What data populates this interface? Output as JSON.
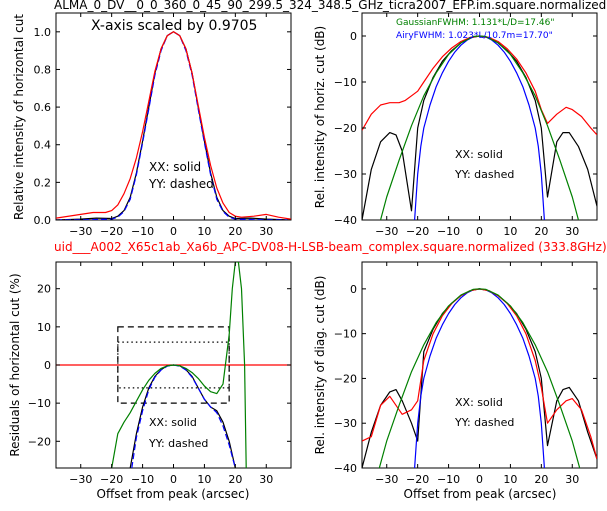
{
  "figure": {
    "title_top": "ALMA_0_DV__0_0_360_0_45_90_299.5_324_348.5_GHz_ticra2007_EFP.im.square.normalized",
    "title_middle": "uid___A002_X65c1ab_Xa6b_APC-DV08-H-LSB-beam_complex.square.normalized (333.8GHz)"
  },
  "colors": {
    "black": "#000000",
    "blue": "#0000ff",
    "red": "#ff0000",
    "green": "#008000"
  },
  "chart_data": [
    {
      "id": "tl",
      "type": "line",
      "ylabel": "Relative intensity of horizontal cut",
      "xlabel": "",
      "xlim": [
        -38,
        38
      ],
      "ylim": [
        0,
        1.1
      ],
      "xticks": [
        "-30",
        "-20",
        "-10",
        "0",
        "10",
        "20",
        "30"
      ],
      "yticks": [
        "0.0",
        "0.2",
        "0.4",
        "0.6",
        "0.8",
        "1.0"
      ],
      "annotation_scale": "X-axis scaled by 0.9705",
      "legend": [
        "XX: solid",
        "YY: dashed"
      ],
      "series": [
        {
          "color": "black",
          "dashed": false,
          "x": [
            -38,
            -30,
            -25,
            -20,
            -18,
            -16,
            -14,
            -12,
            -10,
            -8,
            -6,
            -4,
            -2,
            0,
            2,
            4,
            6,
            8,
            10,
            12,
            14,
            16,
            18,
            20,
            25,
            30,
            38
          ],
          "y": [
            0.0,
            0.005,
            0.01,
            0.008,
            0.02,
            0.05,
            0.12,
            0.25,
            0.42,
            0.6,
            0.78,
            0.91,
            0.98,
            1.0,
            0.98,
            0.91,
            0.78,
            0.6,
            0.42,
            0.25,
            0.12,
            0.05,
            0.02,
            0.008,
            0.01,
            0.005,
            0.0
          ]
        },
        {
          "color": "blue",
          "dashed": true,
          "x": [
            -38,
            -30,
            -20,
            -18,
            -16,
            -14,
            -12,
            -10,
            -8,
            -6,
            -4,
            -2,
            0,
            2,
            4,
            6,
            8,
            10,
            12,
            14,
            16,
            18,
            20,
            30,
            38
          ],
          "y": [
            0.0,
            0.0,
            0.005,
            0.015,
            0.045,
            0.11,
            0.24,
            0.41,
            0.59,
            0.77,
            0.9,
            0.98,
            1.0,
            0.98,
            0.9,
            0.77,
            0.59,
            0.41,
            0.24,
            0.11,
            0.045,
            0.015,
            0.005,
            0.0,
            0.0
          ]
        },
        {
          "color": "red",
          "dashed": false,
          "x": [
            -38,
            -30,
            -26,
            -22,
            -20,
            -18,
            -16,
            -14,
            -12,
            -10,
            -8,
            -6,
            -4,
            -2,
            0,
            2,
            4,
            6,
            8,
            10,
            12,
            14,
            16,
            18,
            20,
            22,
            26,
            30,
            34,
            38
          ],
          "y": [
            0.01,
            0.03,
            0.04,
            0.04,
            0.05,
            0.08,
            0.14,
            0.22,
            0.33,
            0.47,
            0.63,
            0.79,
            0.91,
            0.98,
            1.0,
            0.98,
            0.91,
            0.78,
            0.61,
            0.44,
            0.29,
            0.17,
            0.09,
            0.04,
            0.02,
            0.015,
            0.02,
            0.03,
            0.015,
            0.005
          ]
        }
      ]
    },
    {
      "id": "tr",
      "type": "line",
      "ylabel": "Rel. intensity of horiz. cut (dB)",
      "xlabel": "",
      "xlim": [
        -38,
        38
      ],
      "ylim": [
        -40,
        5
      ],
      "xticks": [
        "-30",
        "-20",
        "-10",
        "0",
        "10",
        "20",
        "30"
      ],
      "yticks": [
        "-40",
        "-30",
        "-20",
        "-10",
        "0"
      ],
      "fwhm_gaussian": "GaussianFWHM: 1.131*L/D=17.46\"",
      "fwhm_airy": "AiryFWHM: 1.023*L/10.7m=17.70\"",
      "legend": [
        "XX: solid",
        "YY: dashed"
      ],
      "series": [
        {
          "color": "black",
          "dashed": false,
          "x": [
            -38,
            -35,
            -32,
            -29,
            -27,
            -25,
            -22,
            -20,
            -18,
            -15,
            -12,
            -9,
            -6,
            -3,
            0,
            3,
            6,
            9,
            12,
            15,
            18,
            20,
            22,
            25,
            27,
            29,
            32,
            35,
            38
          ],
          "y": [
            -40,
            -29,
            -23,
            -21,
            -21.5,
            -25,
            -38,
            -20,
            -14,
            -9,
            -5.5,
            -3.2,
            -1.5,
            -0.4,
            0,
            -0.4,
            -1.5,
            -3.2,
            -5.5,
            -9,
            -14,
            -20,
            -35,
            -23,
            -21,
            -21,
            -24,
            -29,
            -37
          ]
        },
        {
          "color": "blue",
          "dashed": false,
          "x": [
            -21,
            -20,
            -19,
            -18,
            -16,
            -14,
            -12,
            -10,
            -8,
            -6,
            -4,
            -2,
            0,
            2,
            4,
            6,
            8,
            10,
            12,
            14,
            16,
            18,
            19,
            20,
            21
          ],
          "y": [
            -40,
            -30,
            -24,
            -20,
            -15,
            -11,
            -8,
            -5.5,
            -3.5,
            -2,
            -0.9,
            -0.2,
            0,
            -0.2,
            -0.9,
            -2,
            -3.5,
            -5.5,
            -8,
            -11,
            -15,
            -20,
            -24,
            -30,
            -40
          ]
        },
        {
          "color": "red",
          "dashed": false,
          "x": [
            -38,
            -35,
            -32,
            -29,
            -26,
            -24,
            -22,
            -20,
            -18,
            -15,
            -12,
            -9,
            -6,
            -3,
            0,
            3,
            6,
            9,
            12,
            15,
            18,
            20,
            22,
            25,
            28,
            30,
            33,
            36,
            38
          ],
          "y": [
            -20.5,
            -17,
            -15,
            -14.5,
            -14.5,
            -14,
            -13,
            -12,
            -10,
            -7,
            -4.5,
            -2.6,
            -1.2,
            -0.3,
            0,
            -0.3,
            -1.2,
            -2.8,
            -5,
            -8,
            -12,
            -16,
            -19,
            -17,
            -15.5,
            -16,
            -17.5,
            -20,
            -21.5
          ]
        },
        {
          "color": "green",
          "dashed": false,
          "x": [
            -38,
            -34,
            -30,
            -26,
            -22,
            -18,
            -14,
            -10,
            -6,
            -2,
            0,
            2,
            6,
            10,
            14,
            18,
            22,
            26,
            30,
            34,
            38
          ],
          "y": [
            -56,
            -45,
            -35,
            -27,
            -19.5,
            -13,
            -8,
            -4,
            -1.5,
            -0.1,
            0,
            -0.1,
            -1.5,
            -4,
            -8,
            -13,
            -19.5,
            -27,
            -35,
            -45,
            -56
          ]
        }
      ]
    },
    {
      "id": "bl",
      "type": "line",
      "ylabel": "Residuals of horizontal cut (%)",
      "xlabel": "Offset from peak (arcsec)",
      "xlim": [
        -38,
        38
      ],
      "ylim": [
        -27,
        27
      ],
      "xticks": [
        "-30",
        "-20",
        "-10",
        "0",
        "10",
        "20",
        "30"
      ],
      "yticks": [
        "-20",
        "-10",
        "0",
        "10",
        "20"
      ],
      "legend": [
        "XX: solid",
        "YY: dashed"
      ],
      "boxes": [
        {
          "style": "dashed",
          "x": [
            -18,
            18
          ],
          "y": [
            -10,
            10
          ]
        },
        {
          "style": "dotted",
          "x": [
            -18,
            18
          ],
          "y": [
            -6,
            6
          ]
        }
      ],
      "series": [
        {
          "color": "red",
          "dashed": false,
          "x": [
            -38,
            38
          ],
          "y": [
            0,
            0
          ]
        },
        {
          "color": "black",
          "dashed": false,
          "x": [
            -14,
            -12,
            -10,
            -8,
            -6,
            -4,
            -2,
            0,
            2,
            4,
            6,
            8,
            10,
            12,
            14,
            16,
            18,
            20
          ],
          "y": [
            -27,
            -18,
            -11,
            -6,
            -3,
            -1.2,
            -0.2,
            0,
            -0.2,
            -1.2,
            -3,
            -6,
            -9,
            -11,
            -12,
            -15,
            -20,
            -27
          ]
        },
        {
          "color": "blue",
          "dashed": true,
          "x": [
            -13.5,
            -12,
            -10,
            -8,
            -6,
            -4,
            -2,
            0,
            2,
            4,
            6,
            8,
            10,
            12,
            14,
            16,
            18,
            20
          ],
          "y": [
            -27,
            -19,
            -12,
            -6.5,
            -3.2,
            -1.3,
            -0.3,
            0,
            -0.3,
            -1.3,
            -3.2,
            -6,
            -9,
            -11,
            -12.5,
            -16,
            -21,
            -27
          ]
        },
        {
          "color": "green",
          "dashed": false,
          "x": [
            -20,
            -18,
            -16,
            -14,
            -12,
            -10,
            -8,
            -6,
            -4,
            -2,
            0,
            2,
            4,
            6,
            8,
            10,
            12,
            14,
            16,
            18,
            19,
            20,
            21,
            22,
            23,
            23.5
          ],
          "y": [
            -27,
            -18,
            -15,
            -12.5,
            -9.5,
            -6.5,
            -4,
            -2.2,
            -0.9,
            -0.2,
            0,
            -0.2,
            -0.9,
            -2,
            -3.5,
            -5.5,
            -7,
            -7.5,
            -5,
            8,
            20,
            27,
            27,
            20,
            0,
            -27
          ]
        }
      ]
    },
    {
      "id": "br",
      "type": "line",
      "ylabel": "Rel. intensity of diag. cut (dB)",
      "xlabel": "Offset from peak (arcsec)",
      "xlim": [
        -38,
        38
      ],
      "ylim": [
        -40,
        6
      ],
      "xticks": [
        "-30",
        "-20",
        "-10",
        "0",
        "10",
        "20",
        "30"
      ],
      "yticks": [
        "-40",
        "-30",
        "-20",
        "-10",
        "0"
      ],
      "legend": [
        "XX: solid",
        "YY: dashed"
      ],
      "series": [
        {
          "color": "black",
          "dashed": false,
          "x": [
            -38,
            -35,
            -32,
            -29,
            -27,
            -25,
            -22,
            -20,
            -18,
            -15,
            -12,
            -9,
            -6,
            -3,
            0,
            3,
            6,
            9,
            12,
            15,
            18,
            20,
            22,
            25,
            27,
            29,
            32,
            35,
            38
          ],
          "y": [
            -40,
            -32,
            -26,
            -23,
            -22.5,
            -25,
            -30,
            -34,
            -14,
            -9,
            -5.5,
            -3.2,
            -1.5,
            -0.4,
            0,
            -0.4,
            -1.5,
            -3.2,
            -5.5,
            -9,
            -14,
            -20,
            -35,
            -25,
            -22.5,
            -22,
            -25,
            -32,
            -38
          ]
        },
        {
          "color": "blue",
          "dashed": false,
          "x": [
            -21,
            -20,
            -19,
            -18,
            -16,
            -14,
            -12,
            -10,
            -8,
            -6,
            -4,
            -2,
            0,
            2,
            4,
            6,
            8,
            10,
            12,
            14,
            16,
            18,
            19,
            20,
            21
          ],
          "y": [
            -40,
            -30,
            -24,
            -20,
            -15,
            -11,
            -8,
            -5.5,
            -3.5,
            -2,
            -0.9,
            -0.2,
            0,
            -0.2,
            -0.9,
            -2,
            -3.5,
            -5.5,
            -8,
            -11,
            -15,
            -20,
            -24,
            -30,
            -40
          ]
        },
        {
          "color": "red",
          "dashed": false,
          "x": [
            -38,
            -35,
            -32,
            -29,
            -27,
            -25,
            -22,
            -20,
            -18,
            -15,
            -12,
            -9,
            -6,
            -3,
            0,
            3,
            6,
            9,
            12,
            15,
            18,
            20,
            22,
            25,
            28,
            30,
            33,
            36,
            38
          ],
          "y": [
            -34,
            -33,
            -26,
            -24,
            -26,
            -28,
            -27,
            -25,
            -16,
            -10,
            -6,
            -3.3,
            -1.5,
            -0.4,
            0,
            -0.4,
            -1.5,
            -3.3,
            -6,
            -10,
            -16,
            -22,
            -30,
            -27,
            -25,
            -24.5,
            -27,
            -33,
            -38
          ]
        },
        {
          "color": "green",
          "dashed": false,
          "x": [
            -38,
            -34,
            -30,
            -26,
            -22,
            -18,
            -14,
            -10,
            -6,
            -2,
            0,
            2,
            6,
            10,
            14,
            18,
            22,
            26,
            30,
            34,
            38
          ],
          "y": [
            -54,
            -44,
            -34,
            -26,
            -18.5,
            -12.5,
            -7.5,
            -3.8,
            -1.4,
            -0.1,
            0,
            -0.1,
            -1.4,
            -3.8,
            -7.5,
            -12.5,
            -18.5,
            -26,
            -34,
            -44,
            -54
          ]
        }
      ]
    }
  ]
}
